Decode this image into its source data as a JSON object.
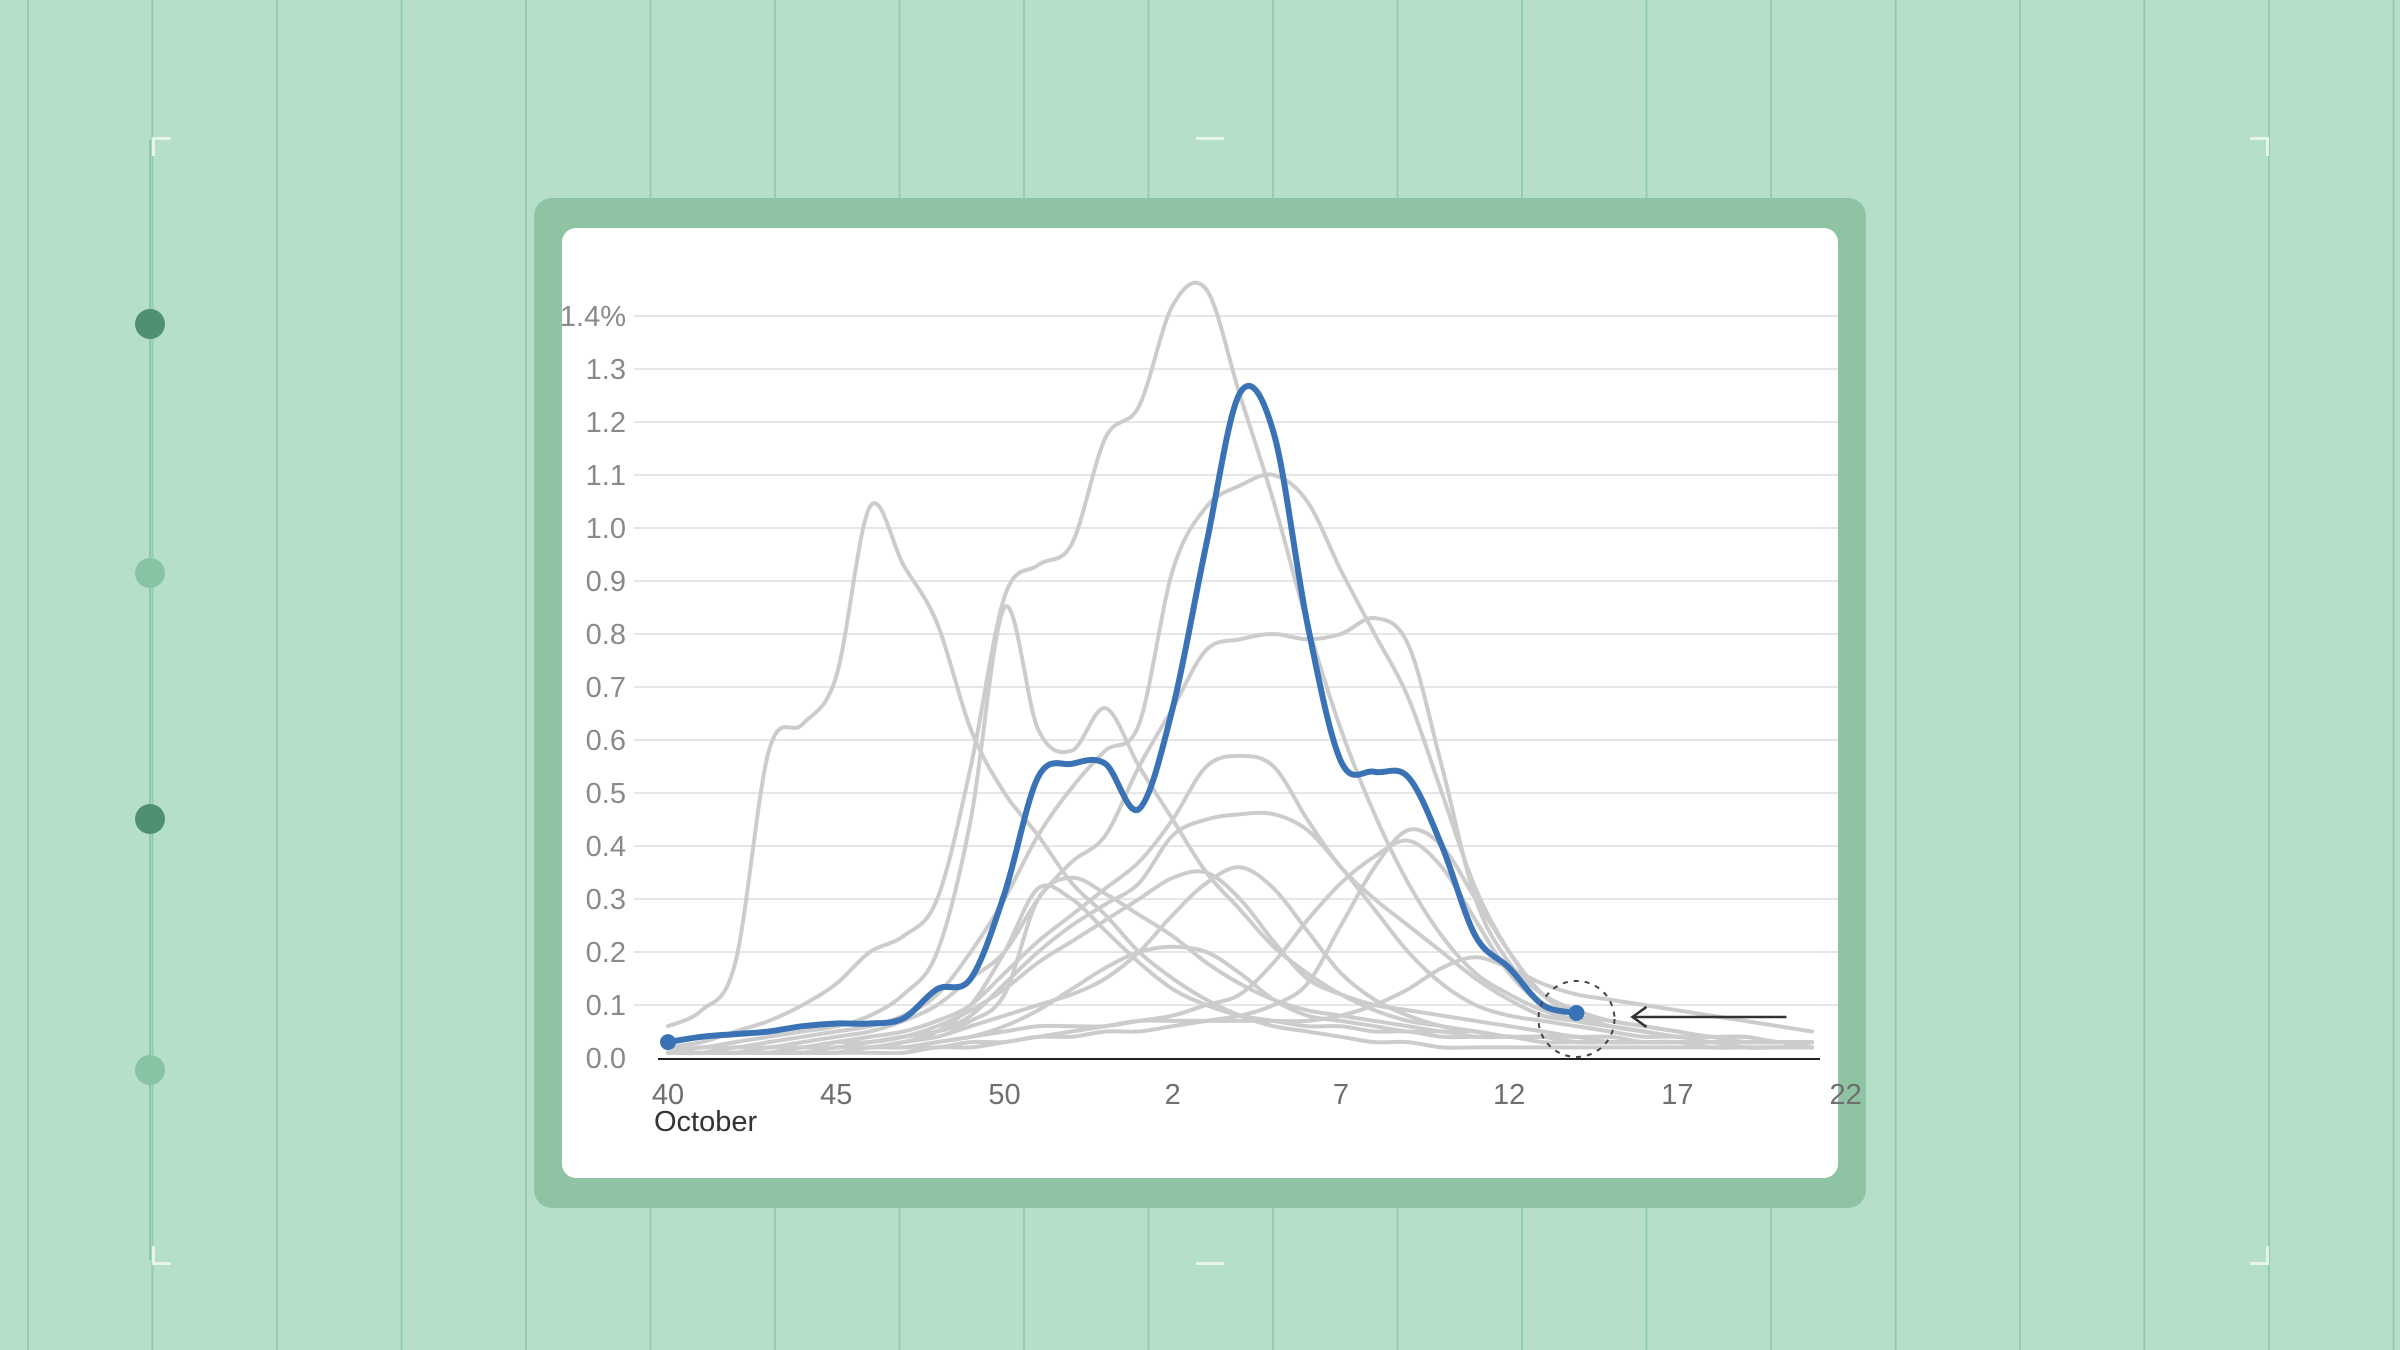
{
  "colors": {
    "background": "#b6dfc9",
    "frame": "#8ec4a4",
    "highlight_series": "#3a73b5",
    "other_series": "#cccccc",
    "rail_dot_dark": "#4f9070",
    "rail_dot_light": "#86c4a4"
  },
  "timeline": {
    "dots": [
      "dark",
      "light",
      "dark",
      "light"
    ]
  },
  "chart_data": {
    "type": "line",
    "title": "",
    "xlabel": "",
    "ylabel": "",
    "ylim": [
      0,
      1.4
    ],
    "y_ticks": [
      0.0,
      0.1,
      0.2,
      0.3,
      0.4,
      0.5,
      0.6,
      0.7,
      0.8,
      0.9,
      1.0,
      1.1,
      1.2,
      1.3,
      1.4
    ],
    "y_tick_labels": [
      "0.0",
      "0.1",
      "0.2",
      "0.3",
      "0.4",
      "0.5",
      "0.6",
      "0.7",
      "0.8",
      "0.9",
      "1.0",
      "1.1",
      "1.2",
      "1.3",
      "1.4%"
    ],
    "x_tick_labels": [
      "40",
      "45",
      "50",
      "2",
      "7",
      "12",
      "17",
      "22"
    ],
    "x_sub_label": "October",
    "grid": true,
    "weeks": [
      "40",
      "41",
      "42",
      "43",
      "44",
      "45",
      "46",
      "47",
      "48",
      "49",
      "50",
      "51",
      "52",
      "1",
      "2",
      "3",
      "4",
      "5",
      "6",
      "7",
      "8",
      "9",
      "10",
      "11",
      "12",
      "13",
      "14",
      "15",
      "16",
      "17",
      "18",
      "19",
      "20",
      "21",
      "22"
    ],
    "highlight": {
      "values": [
        0.03,
        0.04,
        0.045,
        0.05,
        0.06,
        0.065,
        0.065,
        0.075,
        0.13,
        0.15,
        0.31,
        0.53,
        0.555,
        0.555,
        0.47,
        0.66,
        0.97,
        1.255,
        1.18,
        0.82,
        0.56,
        0.54,
        0.53,
        0.4,
        0.23,
        0.17,
        0.1,
        0.085
      ]
    },
    "background_series": [
      {
        "values": [
          0.06,
          0.09,
          0.18,
          0.58,
          0.63,
          0.72,
          1.04,
          0.93,
          0.82,
          0.62,
          0.5,
          0.42,
          0.33,
          0.27,
          0.2,
          0.15,
          0.11,
          0.08,
          0.06,
          0.05,
          0.04,
          0.03,
          0.03,
          0.02,
          0.02,
          0.02,
          0.02,
          0.02,
          0.02,
          0.02,
          0.02,
          0.02,
          0.02,
          0.02,
          0.02
        ]
      },
      {
        "values": [
          0.02,
          0.03,
          0.05,
          0.07,
          0.1,
          0.14,
          0.2,
          0.23,
          0.3,
          0.55,
          0.87,
          0.93,
          0.97,
          1.17,
          1.23,
          1.42,
          1.45,
          1.25,
          1.05,
          0.82,
          0.62,
          0.46,
          0.33,
          0.23,
          0.16,
          0.12,
          0.09,
          0.07,
          0.06,
          0.05,
          0.04,
          0.04,
          0.03,
          0.03,
          0.03
        ]
      },
      {
        "values": [
          0.02,
          0.02,
          0.03,
          0.04,
          0.05,
          0.06,
          0.08,
          0.12,
          0.2,
          0.45,
          0.85,
          0.62,
          0.58,
          0.66,
          0.55,
          0.45,
          0.35,
          0.28,
          0.21,
          0.16,
          0.12,
          0.09,
          0.07,
          0.06,
          0.05,
          0.04,
          0.04,
          0.03,
          0.03,
          0.03,
          0.03,
          0.02,
          0.02,
          0.02,
          0.02
        ]
      },
      {
        "values": [
          0.01,
          0.02,
          0.02,
          0.03,
          0.04,
          0.05,
          0.06,
          0.08,
          0.12,
          0.2,
          0.3,
          0.42,
          0.51,
          0.58,
          0.63,
          0.92,
          1.04,
          1.08,
          1.1,
          1.05,
          0.92,
          0.8,
          0.68,
          0.5,
          0.32,
          0.2,
          0.12,
          0.08,
          0.06,
          0.05,
          0.04,
          0.04,
          0.03,
          0.03,
          0.03
        ]
      },
      {
        "values": [
          0.01,
          0.01,
          0.02,
          0.02,
          0.03,
          0.04,
          0.05,
          0.07,
          0.1,
          0.15,
          0.2,
          0.3,
          0.37,
          0.42,
          0.55,
          0.66,
          0.77,
          0.79,
          0.8,
          0.79,
          0.8,
          0.83,
          0.78,
          0.55,
          0.3,
          0.18,
          0.12,
          0.09,
          0.07,
          0.06,
          0.05,
          0.04,
          0.04,
          0.03,
          0.03
        ]
      },
      {
        "values": [
          0.01,
          0.01,
          0.01,
          0.02,
          0.02,
          0.03,
          0.04,
          0.05,
          0.07,
          0.1,
          0.16,
          0.22,
          0.27,
          0.32,
          0.37,
          0.45,
          0.55,
          0.57,
          0.55,
          0.45,
          0.36,
          0.3,
          0.25,
          0.2,
          0.15,
          0.11,
          0.08,
          0.07,
          0.06,
          0.05,
          0.04,
          0.04,
          0.03,
          0.03,
          0.03
        ]
      },
      {
        "values": [
          0.01,
          0.01,
          0.01,
          0.02,
          0.02,
          0.03,
          0.03,
          0.04,
          0.06,
          0.09,
          0.13,
          0.18,
          0.22,
          0.26,
          0.3,
          0.34,
          0.35,
          0.3,
          0.22,
          0.15,
          0.12,
          0.1,
          0.09,
          0.08,
          0.07,
          0.06,
          0.05,
          0.04,
          0.04,
          0.03,
          0.03,
          0.03,
          0.03,
          0.03,
          0.02
        ]
      },
      {
        "values": [
          0.01,
          0.01,
          0.01,
          0.01,
          0.02,
          0.02,
          0.03,
          0.04,
          0.05,
          0.08,
          0.14,
          0.2,
          0.25,
          0.29,
          0.33,
          0.42,
          0.45,
          0.46,
          0.46,
          0.43,
          0.36,
          0.28,
          0.2,
          0.14,
          0.1,
          0.08,
          0.07,
          0.06,
          0.05,
          0.04,
          0.04,
          0.03,
          0.03,
          0.03,
          0.03
        ]
      },
      {
        "values": [
          0.01,
          0.01,
          0.01,
          0.01,
          0.02,
          0.02,
          0.03,
          0.04,
          0.05,
          0.07,
          0.12,
          0.3,
          0.34,
          0.31,
          0.27,
          0.23,
          0.18,
          0.14,
          0.11,
          0.09,
          0.08,
          0.07,
          0.06,
          0.05,
          0.05,
          0.04,
          0.04,
          0.04,
          0.03,
          0.03,
          0.03,
          0.03,
          0.03,
          0.03,
          0.03
        ]
      },
      {
        "values": [
          0.01,
          0.01,
          0.01,
          0.01,
          0.01,
          0.02,
          0.02,
          0.03,
          0.05,
          0.1,
          0.2,
          0.32,
          0.3,
          0.24,
          0.18,
          0.13,
          0.1,
          0.08,
          0.07,
          0.06,
          0.06,
          0.05,
          0.05,
          0.04,
          0.04,
          0.04,
          0.03,
          0.03,
          0.03,
          0.03,
          0.03,
          0.03,
          0.02,
          0.02,
          0.02
        ]
      },
      {
        "values": [
          0.01,
          0.01,
          0.01,
          0.01,
          0.01,
          0.02,
          0.02,
          0.03,
          0.04,
          0.06,
          0.08,
          0.1,
          0.12,
          0.15,
          0.2,
          0.27,
          0.33,
          0.36,
          0.32,
          0.24,
          0.16,
          0.11,
          0.08,
          0.06,
          0.05,
          0.04,
          0.04,
          0.03,
          0.03,
          0.03,
          0.03,
          0.03,
          0.02,
          0.02,
          0.02
        ]
      },
      {
        "values": [
          0.01,
          0.01,
          0.01,
          0.01,
          0.01,
          0.01,
          0.02,
          0.02,
          0.03,
          0.04,
          0.05,
          0.06,
          0.06,
          0.06,
          0.07,
          0.08,
          0.1,
          0.12,
          0.18,
          0.26,
          0.33,
          0.38,
          0.41,
          0.36,
          0.26,
          0.16,
          0.1,
          0.07,
          0.06,
          0.05,
          0.04,
          0.04,
          0.03,
          0.03,
          0.03
        ]
      },
      {
        "values": [
          0.01,
          0.01,
          0.01,
          0.01,
          0.01,
          0.01,
          0.02,
          0.02,
          0.02,
          0.03,
          0.03,
          0.04,
          0.04,
          0.05,
          0.05,
          0.06,
          0.07,
          0.08,
          0.1,
          0.14,
          0.25,
          0.36,
          0.43,
          0.4,
          0.3,
          0.2,
          0.12,
          0.08,
          0.07,
          0.06,
          0.05,
          0.04,
          0.04,
          0.03,
          0.03
        ]
      },
      {
        "values": [
          0.01,
          0.01,
          0.01,
          0.01,
          0.01,
          0.01,
          0.02,
          0.02,
          0.03,
          0.04,
          0.06,
          0.09,
          0.13,
          0.17,
          0.2,
          0.21,
          0.2,
          0.16,
          0.11,
          0.08,
          0.07,
          0.06,
          0.05,
          0.05,
          0.04,
          0.04,
          0.04,
          0.04,
          0.03,
          0.03,
          0.03,
          0.03,
          0.03,
          0.03,
          0.03
        ]
      },
      {
        "values": [
          0.01,
          0.01,
          0.01,
          0.01,
          0.01,
          0.01,
          0.01,
          0.01,
          0.02,
          0.02,
          0.03,
          0.04,
          0.05,
          0.06,
          0.07,
          0.07,
          0.07,
          0.07,
          0.07,
          0.07,
          0.08,
          0.1,
          0.13,
          0.17,
          0.19,
          0.17,
          0.14,
          0.12,
          0.11,
          0.1,
          0.09,
          0.08,
          0.07,
          0.06,
          0.05
        ]
      }
    ]
  }
}
